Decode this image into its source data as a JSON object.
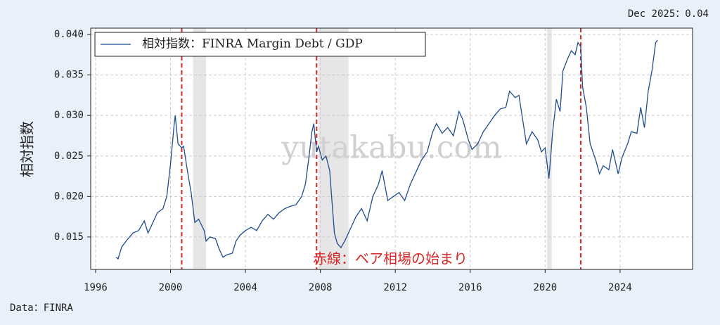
{
  "chart_data": {
    "type": "line",
    "title": "Dec 2025：0.04",
    "ylabel": "相対指数",
    "watermark": "yutakabu.com",
    "annotation": "赤線：ベア相場の始まり",
    "source": "Data：FINRA",
    "x": [
      1997.1,
      1997.2,
      1997.4,
      1997.7,
      1998.0,
      1998.3,
      1998.6,
      1998.8,
      1999.0,
      1999.3,
      1999.6,
      1999.8,
      2000.0,
      2000.2,
      2000.25,
      2000.4,
      2000.6,
      2000.7,
      2000.9,
      2001.1,
      2001.3,
      2001.5,
      2001.8,
      2001.9,
      2002.1,
      2002.4,
      2002.6,
      2002.8,
      2003.0,
      2003.3,
      2003.5,
      2003.7,
      2004.0,
      2004.3,
      2004.6,
      2004.9,
      2005.2,
      2005.5,
      2005.8,
      2006.1,
      2006.4,
      2006.7,
      2007.0,
      2007.2,
      2007.4,
      2007.55,
      2007.65,
      2007.8,
      2007.9,
      2008.1,
      2008.3,
      2008.5,
      2008.6,
      2008.75,
      2008.9,
      2009.1,
      2009.3,
      2009.6,
      2009.9,
      2010.2,
      2010.5,
      2010.8,
      2011.1,
      2011.3,
      2011.6,
      2011.9,
      2012.2,
      2012.5,
      2012.8,
      2013.1,
      2013.4,
      2013.7,
      2014.0,
      2014.2,
      2014.5,
      2014.8,
      2015.1,
      2015.4,
      2015.6,
      2015.9,
      2016.1,
      2016.4,
      2016.7,
      2017.0,
      2017.3,
      2017.6,
      2017.9,
      2018.1,
      2018.4,
      2018.6,
      2018.9,
      2019.0,
      2019.3,
      2019.6,
      2019.8,
      2020.0,
      2020.2,
      2020.4,
      2020.6,
      2020.8,
      2020.95,
      2021.2,
      2021.4,
      2021.6,
      2021.75,
      2021.9,
      2022.0,
      2022.2,
      2022.4,
      2022.7,
      2022.9,
      2023.1,
      2023.4,
      2023.6,
      2023.9,
      2024.1,
      2024.4,
      2024.6,
      2024.9,
      2025.1,
      2025.3,
      2025.5,
      2025.7,
      2025.9,
      2026.0
    ],
    "series": [
      {
        "name": "相対指数：FINRA Margin Debt / GDP",
        "color": "#1f4e8c",
        "values": [
          0.0125,
          0.0123,
          0.0138,
          0.0147,
          0.0155,
          0.0158,
          0.017,
          0.0155,
          0.0165,
          0.018,
          0.0185,
          0.02,
          0.024,
          0.029,
          0.03,
          0.0265,
          0.026,
          0.0262,
          0.0232,
          0.0205,
          0.0168,
          0.0172,
          0.0158,
          0.0145,
          0.015,
          0.0148,
          0.0135,
          0.0125,
          0.0128,
          0.013,
          0.0145,
          0.0152,
          0.0158,
          0.0162,
          0.0158,
          0.017,
          0.0178,
          0.0172,
          0.018,
          0.0185,
          0.0188,
          0.019,
          0.02,
          0.0215,
          0.025,
          0.028,
          0.029,
          0.0255,
          0.0262,
          0.0245,
          0.025,
          0.0232,
          0.02,
          0.0155,
          0.0142,
          0.0137,
          0.0145,
          0.016,
          0.0175,
          0.0185,
          0.017,
          0.02,
          0.0215,
          0.0232,
          0.0195,
          0.02,
          0.0205,
          0.0195,
          0.0215,
          0.023,
          0.0245,
          0.0255,
          0.028,
          0.029,
          0.0278,
          0.0285,
          0.0275,
          0.0305,
          0.0295,
          0.027,
          0.0258,
          0.0265,
          0.028,
          0.029,
          0.03,
          0.0308,
          0.031,
          0.033,
          0.0322,
          0.0325,
          0.028,
          0.0265,
          0.028,
          0.027,
          0.0255,
          0.026,
          0.0222,
          0.028,
          0.032,
          0.0305,
          0.0355,
          0.037,
          0.038,
          0.0375,
          0.039,
          0.0385,
          0.0335,
          0.031,
          0.0265,
          0.0245,
          0.0228,
          0.0238,
          0.0233,
          0.0258,
          0.0228,
          0.0248,
          0.0265,
          0.028,
          0.0278,
          0.031,
          0.0285,
          0.033,
          0.0355,
          0.039,
          0.0393
        ]
      }
    ],
    "recessions": [
      [
        2001.2,
        2001.9
      ],
      [
        2007.9,
        2009.5
      ],
      [
        2020.1,
        2020.35
      ]
    ],
    "recession_color": "#e6e6e6",
    "bear_markets": [
      2000.6,
      2007.8,
      2021.9
    ],
    "bear_color": "#d62728",
    "xlim": [
      1995.74,
      2027.87
    ],
    "ylim": [
      0.011,
      0.04078
    ],
    "xticks": [
      1996,
      2000,
      2004,
      2008,
      2012,
      2016,
      2020,
      2024
    ],
    "yticks": [
      {
        "value": 0.015,
        "label": "0.015"
      },
      {
        "value": 0.02,
        "label": "0.020"
      },
      {
        "value": 0.025,
        "label": "0.025"
      },
      {
        "value": 0.03,
        "label": "0.030"
      },
      {
        "value": 0.035,
        "label": "0.035"
      },
      {
        "value": 0.04,
        "label": "0.040"
      }
    ],
    "grid": true,
    "legend": "upper left"
  }
}
